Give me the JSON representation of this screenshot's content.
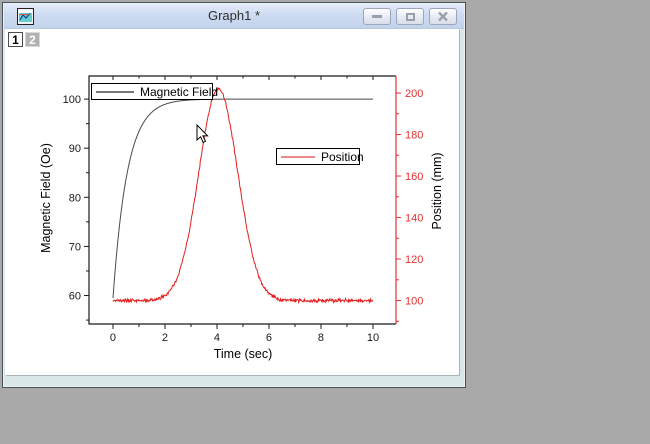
{
  "window": {
    "title": "Graph1 *",
    "controls": [
      {
        "name": "minimize"
      },
      {
        "name": "restore"
      },
      {
        "name": "close"
      }
    ],
    "layers": [
      {
        "label": "1",
        "active": true
      },
      {
        "label": "2",
        "active": false
      }
    ]
  },
  "chart_data": {
    "type": "line",
    "title": "",
    "grid": false,
    "x_axis": {
      "label": "Time (sec)",
      "range": [
        -0.923,
        10.885
      ],
      "major_ticks": [
        0,
        2,
        4,
        6,
        8,
        10
      ],
      "minor_ticks": [
        1,
        3,
        5,
        7,
        9
      ],
      "color": "#1a1a1a"
    },
    "y_axis_left": {
      "label": "Magnetic Field (Oe)",
      "range": [
        54.2,
        104.7
      ],
      "major_ticks": [
        60,
        70,
        80,
        90,
        100
      ],
      "minor_ticks": [
        55,
        65,
        75,
        85,
        95
      ],
      "color": "#1a1a1a"
    },
    "y_axis_right": {
      "label": "Position (mm)",
      "range": [
        88.7,
        208.2
      ],
      "major_ticks": [
        100,
        120,
        140,
        160,
        180,
        200
      ],
      "minor_ticks": [
        90,
        110,
        130,
        150,
        170,
        190
      ],
      "color": "#e63030"
    },
    "series": [
      {
        "name": "Magnetic Field",
        "axis": "left",
        "color": "#4a4a4a",
        "model": {
          "type": "exponential_saturation",
          "start": 59.5,
          "plateau": 100,
          "tau": 0.55,
          "noise": 0,
          "t_start": 0,
          "t_end": 10
        },
        "points": [
          [
            0,
            59.5
          ],
          [
            0.5,
            83.7
          ],
          [
            1,
            93.4
          ],
          [
            1.5,
            97.4
          ],
          [
            2,
            98.9
          ],
          [
            3,
            99.8
          ],
          [
            4,
            100
          ],
          [
            5,
            100
          ],
          [
            6,
            100
          ],
          [
            7,
            100
          ],
          [
            8,
            100
          ],
          [
            9,
            100
          ],
          [
            10,
            100
          ]
        ]
      },
      {
        "name": "Position",
        "axis": "right",
        "color": "#e41e1e",
        "model": {
          "type": "gaussian_peak",
          "baseline": 100,
          "amplitude": 102,
          "center": 4.05,
          "sigma": 0.75,
          "noise": 0.7,
          "t_start": 0,
          "t_end": 10
        },
        "points": [
          [
            0,
            100
          ],
          [
            1,
            100
          ],
          [
            2,
            102.4
          ],
          [
            2.5,
            112.1
          ],
          [
            3,
            138.3
          ],
          [
            3.5,
            177.9
          ],
          [
            4,
            201.8
          ],
          [
            4.05,
            202
          ],
          [
            4.5,
            185.2
          ],
          [
            5,
            145.7
          ],
          [
            5.5,
            115.7
          ],
          [
            6,
            103.5
          ],
          [
            7,
            100
          ],
          [
            8,
            100
          ],
          [
            9,
            100
          ],
          [
            10,
            100
          ]
        ]
      }
    ],
    "legends": [
      {
        "label": "Magnetic Field",
        "sample_color": "#777777"
      },
      {
        "label": "Position",
        "sample_color": "#ec8a8a"
      }
    ],
    "legend_position": "inside plot: top-left and center-right"
  }
}
